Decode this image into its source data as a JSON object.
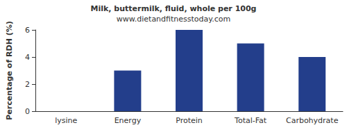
{
  "chart_data": {
    "type": "bar",
    "title": "Milk, buttermilk, fluid, whole per 100g",
    "subtitle": "www.dietandfitnesstoday.com",
    "y_label": "Percentage of RDH (%)",
    "categories": [
      "lysine",
      "Energy",
      "Protein",
      "Total-Fat",
      "Carbohydrate"
    ],
    "values": [
      0,
      3,
      6,
      5,
      4
    ],
    "color": "#233e8b",
    "ylim": [
      0,
      6
    ],
    "yticks": [
      0,
      2,
      4,
      6
    ],
    "grid": false
  }
}
